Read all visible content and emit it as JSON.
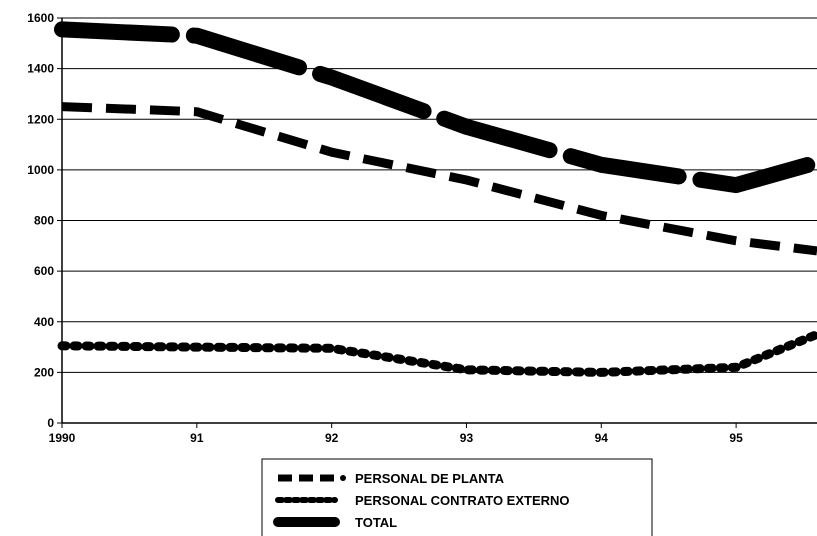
{
  "chart_data": {
    "type": "line",
    "x": [
      1990,
      1991,
      1992,
      1993,
      1994,
      1995,
      1995.6
    ],
    "x_tick_labels": [
      "1990",
      "91",
      "92",
      "93",
      "94",
      "95"
    ],
    "xlim": [
      1990,
      1995.6
    ],
    "ylim": [
      0,
      1600
    ],
    "y_ticks": [
      0,
      200,
      400,
      600,
      800,
      1000,
      1200,
      1400,
      1600
    ],
    "grid": true,
    "legend_position": "bottom",
    "series": [
      {
        "name": "PERSONAL DE PLANTA",
        "style": "dashed",
        "values": [
          1250,
          1230,
          1070,
          960,
          820,
          720,
          680
        ]
      },
      {
        "name": "PERSONAL CONTRATO EXTERNO",
        "style": "short-dashed",
        "values": [
          305,
          300,
          295,
          210,
          200,
          220,
          350
        ]
      },
      {
        "name": "TOTAL",
        "style": "thick-dashed",
        "values": [
          1555,
          1530,
          1365,
          1170,
          1020,
          940,
          1030
        ]
      }
    ]
  },
  "colors": {
    "line": "#000000",
    "grid": "#000000",
    "background": "#ffffff"
  }
}
